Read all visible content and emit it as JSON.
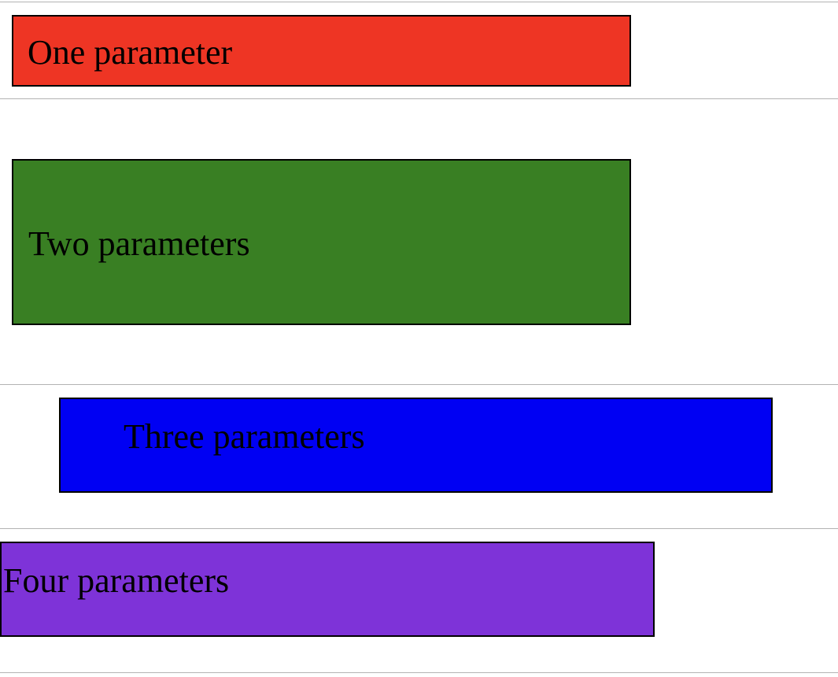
{
  "boxes": [
    {
      "label": "One parameter",
      "color": "#ee3524"
    },
    {
      "label": "Two parameters",
      "color": "#397f23"
    },
    {
      "label": "Three parameters",
      "color": "#0000f3"
    },
    {
      "label": "Four parameters",
      "color": "#7e33d8"
    }
  ]
}
